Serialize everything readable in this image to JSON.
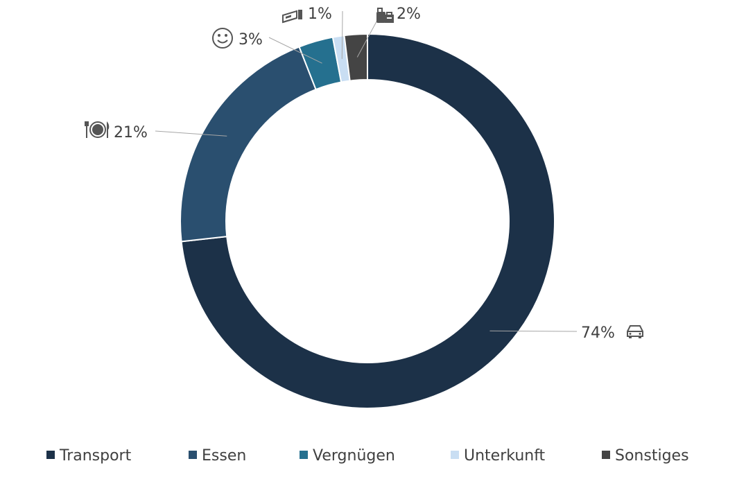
{
  "chart_data": {
    "type": "pie",
    "style": "donut",
    "categories": [
      "Transport",
      "Essen",
      "Vergnügen",
      "Unterkunft",
      "Sonstiges"
    ],
    "values": [
      74,
      21,
      3,
      1,
      2
    ],
    "colors": [
      "#1c3148",
      "#2a4f6f",
      "#25708f",
      "#c9def3",
      "#444444"
    ],
    "data_labels": [
      "74%",
      "21%",
      "3%",
      "1%",
      "2%"
    ],
    "label_icons": [
      "car-icon",
      "plate-cutlery-icon",
      "smiley-icon",
      "bed-icon",
      "backpack-icon"
    ],
    "legend": {
      "position": "bottom",
      "entries": [
        "Transport",
        "Essen",
        "Vergnügen",
        "Unterkunft",
        "Sonstiges"
      ]
    }
  }
}
